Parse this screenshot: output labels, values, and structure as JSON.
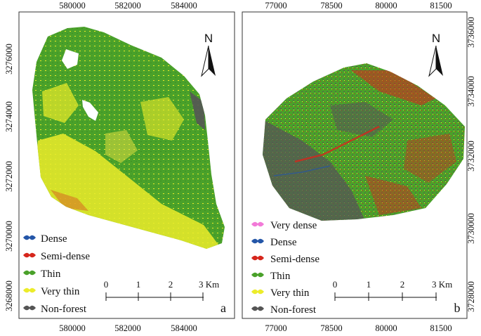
{
  "colors": {
    "very_dense": "#f27ad8",
    "dense": "#2456a8",
    "semi_dense": "#d6261c",
    "thin": "#4aa12a",
    "very_thin": "#ecec2a",
    "non_forest": "#555555",
    "frame": "#333333"
  },
  "panels": [
    {
      "letter": "a",
      "north": "N",
      "top_ticks": [
        "580000",
        "582000",
        "584000"
      ],
      "bottom_ticks": [
        "580000",
        "582000",
        "584000"
      ],
      "left_ticks": [
        "3276000",
        "3274000",
        "3272000",
        "3270000",
        "3268000"
      ],
      "legend": [
        {
          "label": "Dense",
          "color_key": "dense"
        },
        {
          "label": "Semi-dense",
          "color_key": "semi_dense"
        },
        {
          "label": "Thin",
          "color_key": "thin"
        },
        {
          "label": "Very thin",
          "color_key": "very_thin"
        },
        {
          "label": "Non-forest",
          "color_key": "non_forest"
        }
      ],
      "scale_labels": [
        "0",
        "1",
        "2",
        "3 Km"
      ]
    },
    {
      "letter": "b",
      "north": "N",
      "top_ticks": [
        "77000",
        "78500",
        "80000",
        "81500"
      ],
      "bottom_ticks": [
        "77000",
        "78500",
        "80000",
        "81500"
      ],
      "right_ticks": [
        "3736000",
        "3734000",
        "3732000",
        "3730000",
        "3728000"
      ],
      "legend": [
        {
          "label": "Very dense",
          "color_key": "very_dense"
        },
        {
          "label": "Dense",
          "color_key": "dense"
        },
        {
          "label": "Semi-dense",
          "color_key": "semi_dense"
        },
        {
          "label": "Thin",
          "color_key": "thin"
        },
        {
          "label": "Very thin",
          "color_key": "very_thin"
        },
        {
          "label": "Non-forest",
          "color_key": "non_forest"
        }
      ],
      "scale_labels": [
        "0",
        "1",
        "2",
        "3 Km"
      ]
    }
  ]
}
